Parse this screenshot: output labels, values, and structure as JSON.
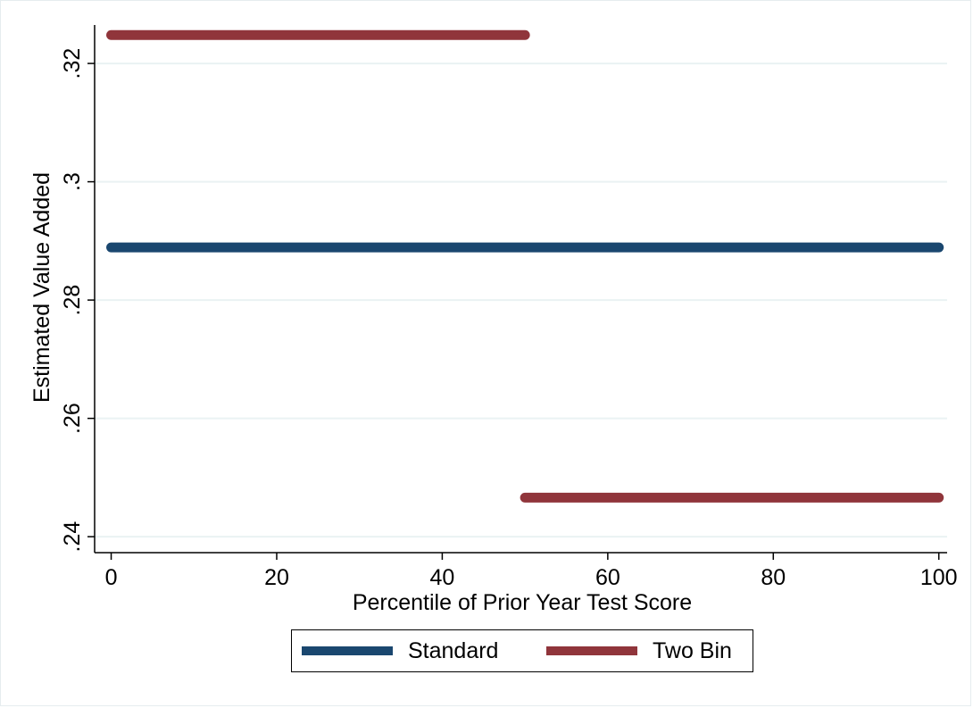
{
  "chart_data": {
    "type": "line",
    "title": "",
    "xlabel": "Percentile of Prior Year Test Score",
    "ylabel": "Estimated Value Added",
    "xlim": [
      -2,
      101
    ],
    "ylim": [
      0.2373,
      0.3265
    ],
    "x_ticks": [
      0,
      20,
      40,
      60,
      80,
      100
    ],
    "x_tick_labels": [
      "0",
      "20",
      "40",
      "60",
      "80",
      "100"
    ],
    "y_ticks": [
      0.24,
      0.26,
      0.28,
      0.3,
      0.32
    ],
    "y_tick_labels": [
      ".24",
      ".26",
      ".28",
      ".3",
      ".32"
    ],
    "grid": true,
    "legend_position": "bottom",
    "series": [
      {
        "name": "Standard",
        "color": "#1a476f",
        "segments": [
          {
            "x": [
              0,
              100
            ],
            "y": [
              0.2889,
              0.2889
            ]
          }
        ]
      },
      {
        "name": "Two Bin",
        "color": "#90353b",
        "segments": [
          {
            "x": [
              0,
              50
            ],
            "y": [
              0.3248,
              0.3248
            ]
          },
          {
            "x": [
              50,
              100
            ],
            "y": [
              0.2466,
              0.2466
            ]
          }
        ]
      }
    ]
  }
}
